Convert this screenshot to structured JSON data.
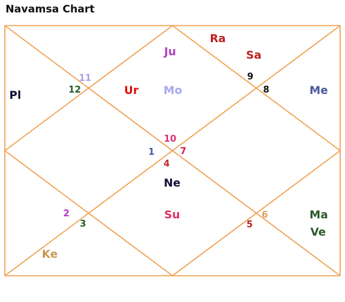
{
  "title": "Navamsa Chart",
  "colors": {
    "lines": "#f0a050",
    "title": "#111111"
  },
  "houses": [
    {
      "number": "1",
      "color": "#4a5aa8"
    },
    {
      "number": "2",
      "color": "#b03cc0"
    },
    {
      "number": "3",
      "color": "#2a5a2a"
    },
    {
      "number": "4",
      "color": "#c03030"
    },
    {
      "number": "5",
      "color": "#c02020"
    },
    {
      "number": "6",
      "color": "#d4a060"
    },
    {
      "number": "7",
      "color": "#d02050"
    },
    {
      "number": "8",
      "color": "#111111"
    },
    {
      "number": "9",
      "color": "#111111"
    },
    {
      "number": "10",
      "color": "#e03070"
    },
    {
      "number": "11",
      "color": "#a8a0e8"
    },
    {
      "number": "12",
      "color": "#2a5a2a"
    }
  ],
  "planets": [
    {
      "name": "Ju",
      "color": "#b040c0"
    },
    {
      "name": "Ra",
      "color": "#c02020"
    },
    {
      "name": "Sa",
      "color": "#c02020"
    },
    {
      "name": "Pl",
      "color": "#111133"
    },
    {
      "name": "Ur",
      "color": "#e01010"
    },
    {
      "name": "Mo",
      "color": "#a8a8f0"
    },
    {
      "name": "Me",
      "color": "#4a5a9a"
    },
    {
      "name": "Ne",
      "color": "#111133"
    },
    {
      "name": "Su",
      "color": "#e03060"
    },
    {
      "name": "Ma",
      "color": "#2a5a2a"
    },
    {
      "name": "Ve",
      "color": "#2a5a2a"
    },
    {
      "name": "Ke",
      "color": "#c89850"
    }
  ]
}
